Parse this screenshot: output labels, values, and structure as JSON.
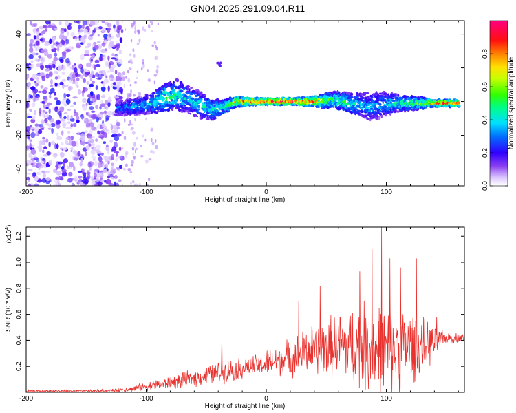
{
  "title": "GN04.2025.291.09.04.R11",
  "colors": {
    "snr_line": "#e8322e",
    "axis": "#000000"
  },
  "chart_data": [
    {
      "type": "heatmap",
      "title": "GN04.2025.291.09.04.R11",
      "xlabel": "Height of straight line (km)",
      "ylabel": "Frequency (Hz)",
      "xlim": [
        -200,
        165
      ],
      "ylim": [
        -50,
        48
      ],
      "xticks": [
        "-200",
        "-100",
        "0",
        "100"
      ],
      "yticks": [
        "-40",
        "-20",
        "0",
        "20",
        "40"
      ],
      "colorbar": {
        "label": "Normalized spectral amplitude",
        "range": [
          0,
          1
        ],
        "ticks": [
          "0.0",
          "0.2",
          "0.4",
          "0.6",
          "0.8"
        ]
      },
      "signal_band": {
        "description_x": [
          -125,
          160
        ],
        "center_freq_hz": 0,
        "points_x": [
          -125,
          -110,
          -95,
          -85,
          -75,
          -65,
          -55,
          -45,
          -35,
          -25,
          -10,
          0,
          10,
          25,
          40,
          55,
          70,
          85,
          95,
          110,
          125,
          140,
          160
        ],
        "points_freq": [
          -4,
          -3,
          -1,
          2,
          4,
          1,
          -2,
          -5,
          -3,
          0,
          0,
          0,
          0,
          0,
          0,
          1,
          -1,
          -3,
          -2,
          -1,
          -1,
          -1,
          -1
        ],
        "points_width": [
          4,
          5,
          6,
          8,
          9,
          8,
          8,
          6,
          4,
          3,
          2,
          2,
          2,
          2,
          3,
          5,
          6,
          8,
          8,
          5,
          4,
          2,
          2
        ],
        "points_amp": [
          0.3,
          0.35,
          0.4,
          0.5,
          0.45,
          0.4,
          0.4,
          0.45,
          0.5,
          0.7,
          0.9,
          0.9,
          0.9,
          0.9,
          0.8,
          0.5,
          0.45,
          0.35,
          0.35,
          0.45,
          0.5,
          0.8,
          0.9
        ]
      }
    },
    {
      "type": "line",
      "xlabel": "Height of straight line (km)",
      "ylabel": "SNR (10 * v/v)",
      "y_multiplier": "(x10",
      "y_multiplier_exp": "4",
      "y_multiplier_close": ")",
      "xlim": [
        -200,
        165
      ],
      "ylim": [
        0,
        1.27
      ],
      "xticks": [
        "-200",
        "-100",
        "0",
        "100"
      ],
      "yticks": [
        "0.2",
        "0.4",
        "0.6",
        "0.8",
        "1.0",
        "1.2"
      ],
      "envelope": {
        "x": [
          -200,
          -150,
          -125,
          -110,
          -90,
          -70,
          -55,
          -40,
          -25,
          -10,
          0,
          15,
          30,
          45,
          60,
          70,
          80,
          90,
          100,
          110,
          120,
          130,
          140,
          150,
          165
        ],
        "base": [
          0.01,
          0.01,
          0.015,
          0.03,
          0.06,
          0.09,
          0.12,
          0.15,
          0.18,
          0.2,
          0.22,
          0.26,
          0.3,
          0.34,
          0.36,
          0.36,
          0.35,
          0.34,
          0.33,
          0.34,
          0.35,
          0.36,
          0.38,
          0.42,
          0.42
        ],
        "amplitude": [
          0.01,
          0.01,
          0.015,
          0.03,
          0.05,
          0.07,
          0.08,
          0.1,
          0.1,
          0.1,
          0.12,
          0.15,
          0.2,
          0.25,
          0.3,
          0.35,
          0.4,
          0.42,
          0.42,
          0.38,
          0.33,
          0.25,
          0.15,
          0.05,
          0.04
        ]
      },
      "peaks": [
        {
          "x": 96,
          "y": 1.27
        },
        {
          "x": 88,
          "y": 1.1
        },
        {
          "x": 103,
          "y": 1.03
        },
        {
          "x": 125,
          "y": 1.03
        },
        {
          "x": 78,
          "y": 0.93
        },
        {
          "x": 112,
          "y": 0.96
        },
        {
          "x": 45,
          "y": 0.82
        },
        {
          "x": 27,
          "y": 0.7
        },
        {
          "x": -37,
          "y": 0.42
        },
        {
          "x": 142,
          "y": 0.58
        }
      ]
    }
  ]
}
